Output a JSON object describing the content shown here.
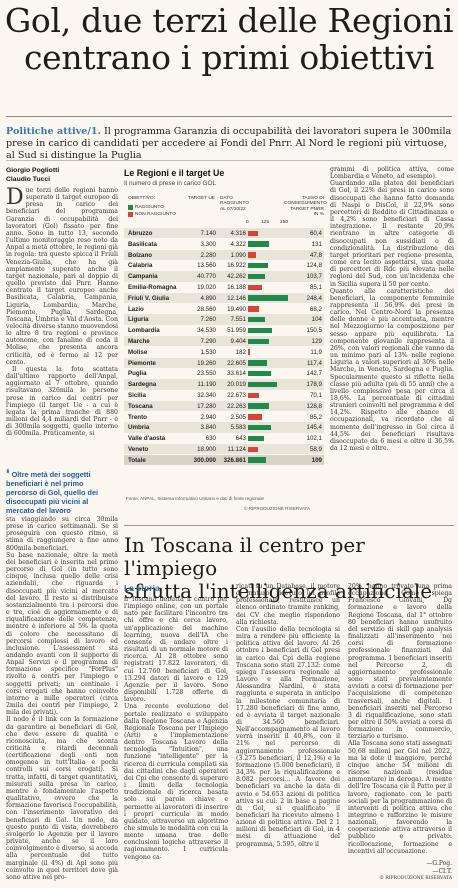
{
  "headline": {
    "line1": "Gol, due terzi delle Regioni",
    "line2": "centrano i primi obiettivi"
  },
  "summary": {
    "label": "Politiche attive/1.",
    "text": " Il programma Garanzia di occupabilità dei lavoratori supera le 300mila prese in carico di candidati per accedere ai Fondi del Pnrr. Al Nord le regioni più virtuose, al Sud si distingue la Puglia"
  },
  "byline": {
    "author1": "Giorgio Pogliotti",
    "author2": "Claudio Tucci"
  },
  "article": {
    "dropcap": "D",
    "col1": "ue terzi delle regioni hanno superato il target europeo di presa in carico dei beneficiari del programma Garanzia di occupabilità dei lavoratori (Gol) fissato per fine anno. Sono in tutto 13, secondo l'ultimo monitoraggio reso noto da Anpal a metà ottobre, le regioni già in regola: tra queste spicca il Friuli Venezia-Giulia, che ha già ampiamente superato anche il target nazionale, pari al doppio di quello previsto dal Pnrr. Hanno centrato il target europeo anche Basilicata, Calabria, Campania, Liguria, Lombardia, Marche, Piemonte, Puglia, Sardegna, Toscana, Umbria e Val d'Aosta. Con velocità diverse stanno muovendosi le altre 8 tra regioni e province autonome, con fanalino di coda il Molise, che presenta ancora criticità, ed è fermo al 12 per cento.",
    "col1b": "Il questa la foto scattata dall'ultimo rapporto dell'Anpal, aggiornato al 7 ottobre, quando risultavano 326mila le persone prese in carico dai centri per l'impiego (il target Ue - a cui è legata la prima tranche di 880 milioni del 4,4 miliardi del Pnrr - è di 300mila soggetti, quello interno di 600mila. Praticamente, si",
    "col1c": "sta viaggiando su circa 30mila prese in carico settimanali. Se si proseguirà con questo ritmo, si stima di raggiungere a fine anno 800mila beneficiari.\nSu base nazionale, oltre la metà dei beneficiari è inserita nel primo percorso di Gol (in tutto sono cinque, inclusa quello delle crisi aziendali), che riguarda i disoccupati più vicini al mercato del lavoro. Il resto si distribuisce sostanzialmente tra i percorsi due e tre, cioè di aggiornamento e di riqualificazione delle competenze, mentre è inferiore al 5% la quota di coloro che necessitano di percorsi complessi di lavoro ed inclusione. L'assessment sta andando avanti con il supporto di Anpal Servizi e il programma di formazione specifico \"ForPlus\" rivolto a centri per l'impiego e soggetti privati; un centinaio i corsi erogati che hanno coinvolto intorno a mille operatori (circa 2mila dei centri per l'impiego, 2 mila dei privati).\nIl nodo è il link con la formazione da garantire ai beneficiari di Gol, che deve essere di qualità e riconosciuta, ma che sconta criticità e ritardi decennali (certificazione degli enti non omogenea in tutt'Italia e pochi controlli sui corsi erogati). Si tratta, infatti, di target quantitativi, misurati sulla presa in carico, mentre è fondamentale l'aspetto qualitativo, ovvero che la formazione favorisca l'occupabilità, con l'inserimento lavorativo dei beneficiari di Gol. Un nodo, da questo punto di vista, dovrebbero svolgerlo le Agenzie per il lavoro private, anche se il loro coinvolgimento è diverso, si accoda alla percentuale del tutto marginale (il 4%) di Apl sono più coinvolte in quei territori dove già sono attive nei pro-",
    "col3": "grammi di politica attiva, come Lombardia e Veneto, ad esempio).\nGuardando alla platea dei beneficiari di Gol, il 22% dei presi in carico sono disoccupati che hanno fatto domanda di Naspi o DisCol, il 22,9% sono percettori di Reddito di Cittadinanza e il 4,2% sono beneficiari di Cassa integrazione. Il restante 20,9% rientrano in altre categorie di disoccupati non sussidiati o di condizionalità. La distribuzione dei target prioritari per regione presenta, come era lecito aspettarsi, una quota di percettori di Rdc più elevata nelle regioni del Sud, con un'incidenza che in Sicilia supera il 50 per cento.\nQuanto alle caratteristiche dei beneficiari, la componente femminile rappresenta il 56,9% dei presi in carico. Nel Centro-Nord la presenza delle donne è più accentuata, mentre nel Mezzogiorno la composizione per sesso appare più equilibrata. La componente giovanile rappresenta il 26%, con valori regionali che vanno da un minimo pari al 13% nelle regione Liguria a valori superiori al 30% nelle Marche, in Veneto, Sardegna e Puglia. Specularmente questo si riflette nella classe più adulta (più di 55 anni) che a livello complessivo pesa per circa il 18,6%. La percentuale di cittadini stranieri coinvolti nel programma è del 14,2%. Rispetto alle chance di occupazionali, va ricordato che al momento dell'ingresso in Gol circa il 44,5% dei beneficiari risultava disoccupato da 6 mesi e oltre il 36,5% da 12 mesi e oltre.",
    "quote": "Oltre metà dei soggetti beneficiari è nel primo percorso di Gol, quello dei disoccupati più vicini al mercato del lavoro"
  },
  "chart_data": {
    "type": "table",
    "title": "Le Regioni e il target Ue",
    "subtitle": "Il numero di prese in carico GOL",
    "headers": {
      "region": "OBIETTIVO:",
      "target": "TARGET UE",
      "achieved": "DATO RAGGIUNTO AL 07/10/22",
      "rate": "TASSO DI CONSEGUIMENTO TARGET PNRR IN %"
    },
    "legend": {
      "achieved": "RAGGIUNTO",
      "not_achieved": "NON RAGGIUNTO"
    },
    "scale_ticks": [
      "0",
      "125",
      "250"
    ],
    "colors": {
      "achieved": "#1f8a4c",
      "not_achieved": "#d8443a"
    },
    "rows": [
      {
        "region": "Abruzzo",
        "target": "7.140",
        "achieved": "4.316",
        "rate": "60,4",
        "value": 60.4,
        "ok": false
      },
      {
        "region": "Basilicata",
        "target": "3.300",
        "achieved": "4.322",
        "rate": "131",
        "value": 131,
        "ok": true
      },
      {
        "region": "Bolzano",
        "target": "2.280",
        "achieved": "1.090",
        "rate": "47,8",
        "value": 47.8,
        "ok": false
      },
      {
        "region": "Calabria",
        "target": "13.560",
        "achieved": "16.922",
        "rate": "124,8",
        "value": 124.8,
        "ok": true
      },
      {
        "region": "Campania",
        "target": "40.770",
        "achieved": "42.262",
        "rate": "103,7",
        "value": 103.7,
        "ok": true
      },
      {
        "region": "Emilia-Romagna",
        "target": "19.020",
        "achieved": "16.188",
        "rate": "85,1",
        "value": 85.1,
        "ok": false
      },
      {
        "region": "Friuli V. Giulia",
        "target": "4.890",
        "achieved": "12.146",
        "rate": "248,4",
        "value": 248.4,
        "ok": true
      },
      {
        "region": "Lazio",
        "target": "28.560",
        "achieved": "19.490",
        "rate": "68,2",
        "value": 68.2,
        "ok": false
      },
      {
        "region": "Liguria",
        "target": "7.260",
        "achieved": "7.551",
        "rate": "104",
        "value": 104,
        "ok": true
      },
      {
        "region": "Lombardia",
        "target": "34.530",
        "achieved": "51.959",
        "rate": "150,5",
        "value": 150.5,
        "ok": true
      },
      {
        "region": "Marche",
        "target": "7.290",
        "achieved": "9.404",
        "rate": "129",
        "value": 129,
        "ok": true
      },
      {
        "region": "Molise",
        "target": "1.530",
        "achieved": "182",
        "rate": "11,9",
        "value": 11.9,
        "ok": false
      },
      {
        "region": "Piemonte",
        "target": "19.260",
        "achieved": "22.605",
        "rate": "117,4",
        "value": 117.4,
        "ok": true
      },
      {
        "region": "Puglia",
        "target": "23.550",
        "achieved": "33.614",
        "rate": "142,7",
        "value": 142.7,
        "ok": true
      },
      {
        "region": "Sardegna",
        "target": "11.190",
        "achieved": "20.019",
        "rate": "178,9",
        "value": 178.9,
        "ok": true
      },
      {
        "region": "Sicilia",
        "target": "32.340",
        "achieved": "22.673",
        "rate": "70,1",
        "value": 70.1,
        "ok": false
      },
      {
        "region": "Toscana",
        "target": "17.280",
        "achieved": "22.263",
        "rate": "128,8",
        "value": 128.8,
        "ok": true
      },
      {
        "region": "Trento",
        "target": "2.940",
        "achieved": "2.505",
        "rate": "85,2",
        "value": 85.2,
        "ok": false
      },
      {
        "region": "Umbria",
        "target": "3.840",
        "achieved": "5.583",
        "rate": "145,4",
        "value": 145.4,
        "ok": true
      },
      {
        "region": "Valle d'aosta",
        "target": "630",
        "achieved": "643",
        "rate": "102,1",
        "value": 102.1,
        "ok": true
      },
      {
        "region": "Veneto",
        "target": "18.900",
        "achieved": "11.124",
        "rate": "58,9",
        "value": 58.9,
        "ok": false
      }
    ],
    "total": {
      "region": "Totale",
      "target": "300.000",
      "achieved": "326.861",
      "rate": "109",
      "value": 109,
      "ok": true
    },
    "source": "Fonte: ANPAL, Sistema Informativo Unitario e dati di fonte regionale",
    "copyright": "© RIPRODUZIONE RISERVATA"
  },
  "second": {
    "headline1": "In Toscana il centro per l'impiego",
    "headline2": "sfrutta l'intelligenza artificiale",
    "kicker": "La storia",
    "col1": "n Toscana debutta il centro per l'impiego online, con un portale nato per facilitare l'incontro tra chi offre e chi cerca lavoro, un'applicazione del machine learning, nuova dell'IA che consente di andare oltre i risultati di un normale motore di ricerca. Al 28 ottobre sono registrati 17.822 lavoratori, di cui 12.760 beneficiari di Gol, 13.294 datori di lavoro e 129 Agenzie per il lavoro. Sono disponibili 1.728 offerte di lavoro.\nUna recente evoluzione del portale realizzato e sviluppato dalla Regione Toscana e Agenzia Regionale Toscana per l'Impiego (Arti) e l'implementazione dentro Toscana Lavoro della tecnologia \"Intuition\", una funzione \"intelligente\" per la ricerca di curricula compilati sia dai cittadini che dagli operatori dei Cpi che consente di superare i limiti della tecnologia tradizionale di ricerca basata solo sui parole chiave e permette ai lavoratori di inserire i propri curricula in modo guidato, attraverso un algoritmo che simula le modalità con cui la mente umana trae delle conclusioni logiche attraverso il ragionamento. I curricula vengono ca-",
    "col2": "ricati su un Database, il motore di lnaturo, ricevuto un profilo professionale, restituisce un elenco ordinato tramite ranking, dei CV che meglio rispondono alla richiesta.\nCon l'ausilio della tecnologia si mira a rendere più efficiente la politica attiva del lavoro. Al 26 ottobre i beneficiari di Gol presi in carico dai Cpi della regione Toscana sono stati 27.132: come spiega l'assessora regionale al Lavoro e alla Formazione, Alessandra Nardini, è stata raggiunta e superata in anticipo la milestone comunitaria di 17.280 beneficiari di fine anno, ed è avviata il target nazionale di 34.560 beneficiari. Nell'accompagnamento al lavoro verrà inseriti il 40,8%, con il 21% nel percorso di aggiornamento professionale (3.275 beneficiari, il 12,1%) e la formazione (5.000 beneficiari), il 34,3% per la riqualificazione e 8.082 percorsi... A favore dei beneficiari va anche la data di avvio e 54.653 azioni di politica attiva su cui: 2 in base a pagine di Gol, si qualificato il beneficiari ha ricevuto almeno 1 azione di politica attiva. Del 2 1 milioni di beneficiari di Gol, in 4 mesi di attuazione del programma, 5.595, oltre il",
    "col3": "20%, hanno trovato una prima occupazione. Come spiega Francesco Giovani, Dg formazione e lavoro della Regione Toscana, dal 1° ottobre 80 beneficiari hanno usufruito del servizio di skill gap analysis finalizzati all'inserimento nei corsi di formazione professionale finanziati dal programma. I beneficiari inseriti nel Percorso 2, di aggiornamento professionale sono stati prevalentemente avviati a corsi di formazione per l'acquisizione di competenze trasversali, anche digitali. I beneficiari inseriti nel Percorso 3 di riqualificazione, sono stati per oltre il 50% avviati a corsi di formazione in commercio, terziario e turismo.\nAlla Toscana sono stati assegnati 50,68 milioni per Gol nel 2022, ma la dote il maggiore, perché cinque anche 54 milioni di risorse nazionali (residua ammontare) in deroga). A mente dell'Ire Toscana ciè il Patto per il lavoro, ragionato con le parti sociali per la programmazione di interventi di politica attiva che integrino e rafforzino le misure nazionali, favorendo la cooperazione attiva attraverso il pubblico e privato: ricollocazione, formazione e incentivi all'occupazione.",
    "signature": "—G.Pog.",
    "signature2": "—Cl.T.",
    "copyright": "© RIPRODUZIONE RISERVATA"
  }
}
